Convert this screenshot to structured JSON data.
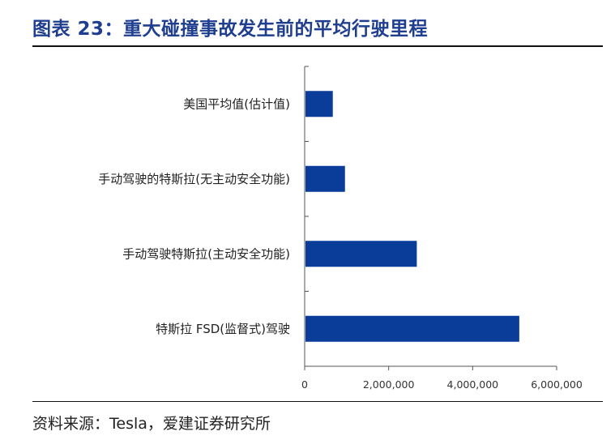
{
  "header": {
    "title": "图表 23：重大碰撞事故发生前的平均行驶里程"
  },
  "footer": {
    "source": "资料来源：Tesla，爱建证券研究所"
  },
  "chart_data": {
    "type": "bar",
    "orientation": "horizontal",
    "categories": [
      "美国平均值(估计值)",
      "手动驾驶的特斯拉(无主动安全功能)",
      "手动驾驶特斯拉(主动安全功能)",
      "特斯拉 FSD(监督式)驾驶"
    ],
    "values": [
      670000,
      960000,
      2670000,
      5110000
    ],
    "xlim": [
      0,
      6000000
    ],
    "xticks": [
      0,
      2000000,
      4000000,
      6000000
    ],
    "xtick_labels": [
      "0",
      "2,000,000",
      "4,000,000",
      "6,000,000"
    ],
    "bar_color": "#0a3c9a",
    "grid": false,
    "legend": "none"
  }
}
